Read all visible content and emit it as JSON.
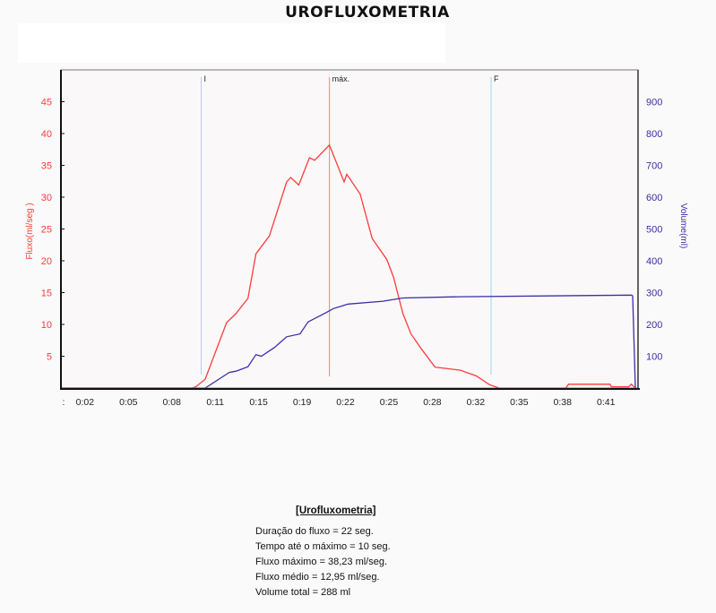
{
  "title": "UROFLUXOMETRIA",
  "chart_data": {
    "type": "line",
    "title": "UROFLUXOMETRIA",
    "xlabel": "",
    "ylabel_left": "Fluxo(ml/seg )",
    "ylabel_right": "Volume(ml)",
    "x_unit": "seconds (m:ss)",
    "xlim": [
      0.2,
      43.4
    ],
    "ylim_left": [
      0,
      50
    ],
    "ylim_right": [
      0,
      1000
    ],
    "x_ticks": [
      {
        "t": 0.4,
        "label": ":"
      },
      {
        "t": 2,
        "label": "0:02"
      },
      {
        "t": 5.25,
        "label": "0:05"
      },
      {
        "t": 8.5,
        "label": "0:08"
      },
      {
        "t": 11.75,
        "label": "0:11"
      },
      {
        "t": 15,
        "label": "0:15"
      },
      {
        "t": 18.25,
        "label": "0:19"
      },
      {
        "t": 21.5,
        "label": "0:22"
      },
      {
        "t": 24.75,
        "label": "0:25"
      },
      {
        "t": 28,
        "label": "0:28"
      },
      {
        "t": 31.25,
        "label": "0:32"
      },
      {
        "t": 34.5,
        "label": "0:35"
      },
      {
        "t": 37.75,
        "label": "0:38"
      },
      {
        "t": 41,
        "label": "0:41"
      }
    ],
    "y_ticks_left": [
      5,
      10,
      15,
      20,
      25,
      30,
      35,
      40,
      45
    ],
    "y_ticks_right": [
      100,
      200,
      300,
      400,
      500,
      600,
      700,
      800,
      900
    ],
    "grid": false,
    "colors": {
      "flow": "#ff3b3b",
      "volume": "#3a2fa8",
      "marker_lines": "#9fd6f0",
      "max_line": "#ff7a7a",
      "plot_bg": "#fbf8fa"
    },
    "markers": [
      {
        "label": "I",
        "t": 10.7
      },
      {
        "label": "máx.",
        "t": 20.3
      },
      {
        "label": "F",
        "t": 32.4
      }
    ],
    "series": [
      {
        "name": "Fluxo",
        "axis": "left",
        "points": [
          [
            0.2,
            0
          ],
          [
            10.0,
            0
          ],
          [
            10.3,
            0.2
          ],
          [
            11.0,
            1.4
          ],
          [
            12.6,
            10.3
          ],
          [
            13.3,
            11.7
          ],
          [
            14.2,
            14.1
          ],
          [
            14.8,
            21.1
          ],
          [
            15.8,
            23.9
          ],
          [
            17.1,
            32.4
          ],
          [
            17.4,
            33.1
          ],
          [
            18.0,
            31.9
          ],
          [
            18.8,
            36.2
          ],
          [
            19.2,
            35.8
          ],
          [
            20.3,
            38.2
          ],
          [
            21.4,
            32.4
          ],
          [
            21.6,
            33.6
          ],
          [
            22.6,
            30.5
          ],
          [
            23.5,
            23.5
          ],
          [
            24.6,
            20.2
          ],
          [
            25.1,
            17.4
          ],
          [
            25.8,
            11.7
          ],
          [
            26.4,
            8.5
          ],
          [
            27.2,
            6.1
          ],
          [
            28.2,
            3.3
          ],
          [
            30.1,
            2.8
          ],
          [
            31.3,
            1.9
          ],
          [
            32.3,
            0.5
          ],
          [
            33.0,
            0
          ],
          [
            38.0,
            0
          ],
          [
            38.2,
            0.6
          ],
          [
            41.3,
            0.6
          ],
          [
            41.4,
            0.2
          ],
          [
            42.7,
            0.2
          ],
          [
            42.9,
            0.6
          ],
          [
            43.2,
            0
          ]
        ]
      },
      {
        "name": "Volume",
        "axis": "right",
        "points": [
          [
            0.2,
            0
          ],
          [
            11.0,
            0
          ],
          [
            12.8,
            49
          ],
          [
            13.3,
            53
          ],
          [
            14.2,
            67
          ],
          [
            14.8,
            105
          ],
          [
            15.2,
            100
          ],
          [
            16.2,
            128
          ],
          [
            17.1,
            161
          ],
          [
            18.1,
            170
          ],
          [
            18.7,
            208
          ],
          [
            20.0,
            236
          ],
          [
            20.6,
            250
          ],
          [
            21.7,
            264
          ],
          [
            24.3,
            273
          ],
          [
            25.8,
            283
          ],
          [
            30.1,
            287
          ],
          [
            42.9,
            292
          ],
          [
            43.0,
            290
          ],
          [
            43.2,
            0
          ]
        ]
      }
    ]
  },
  "summary": {
    "heading": "[Urofluxometria]",
    "lines": [
      "Duração do fluxo = 22 seg.",
      "Tempo até o máximo = 10 seg.",
      "Fluxo máximo = 38,23 ml/seg.",
      "Fluxo médio = 12,95 ml/seg.",
      "Volume total = 288 ml"
    ]
  }
}
